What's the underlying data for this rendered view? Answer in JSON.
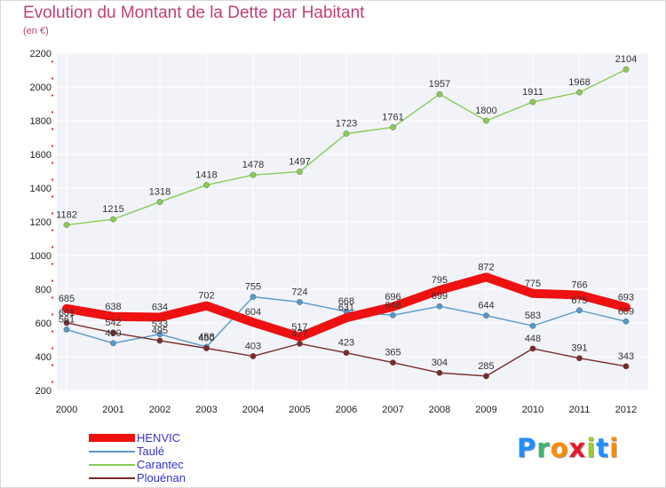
{
  "title": "Evolution du Montant de la Dette par Habitant",
  "subtitle": "(en €)",
  "logo": {
    "text": "Proxiti",
    "colors": [
      "#1e90ff",
      "#3cb371",
      "#ff8c00",
      "#e8192c",
      "#9acd32",
      "#1e90ff",
      "#ff8c00"
    ]
  },
  "chart_data": {
    "type": "line",
    "title": "Evolution du Montant de la Dette par Habitant",
    "subtitle": "(en €)",
    "x": [
      "2000",
      "2001",
      "2002",
      "2003",
      "2004",
      "2005",
      "2006",
      "2007",
      "2008",
      "2009",
      "2010",
      "2011",
      "2012"
    ],
    "yticks": [
      "200",
      "400",
      "600",
      "800",
      "1000",
      "1200",
      "1400",
      "1600",
      "1800",
      "2000",
      "2200"
    ],
    "ylim": [
      200,
      2200
    ],
    "grid": true,
    "legend_position": "bottom-left",
    "series": [
      {
        "name": "HENVIC",
        "color": "#ee1111",
        "values": [
          685,
          638,
          634,
          702,
          604,
          517,
          631,
          696,
          795,
          872,
          775,
          766,
          693
        ],
        "labels": [
          "685",
          "638",
          "634",
          "702",
          "604",
          "517",
          "631",
          "696",
          "795",
          "872",
          "775",
          "766",
          "693"
        ]
      },
      {
        "name": "Taulé",
        "color": "#5599cc",
        "values": [
          561,
          480,
          533,
          458,
          755,
          724,
          668,
          646,
          699,
          644,
          583,
          675,
          609
        ],
        "labels": [
          "561",
          "480",
          "533",
          "458",
          "755",
          "724",
          "668",
          "646",
          "699",
          "644",
          "583",
          "675",
          "609"
        ]
      },
      {
        "name": "Carantec",
        "color": "#88cc55",
        "values": [
          1182,
          1215,
          1318,
          1418,
          1478,
          1497,
          1723,
          1761,
          1957,
          1800,
          1911,
          1968,
          2104
        ],
        "labels": [
          "1182",
          "1215",
          "1318",
          "1418",
          "1478",
          "1497",
          "1723",
          "1761",
          "1957",
          "1800",
          "1911",
          "1968",
          "2104"
        ]
      },
      {
        "name": "Plouénan",
        "color": "#7a2a2a",
        "values": [
          601,
          542,
          495,
          450,
          403,
          477,
          423,
          365,
          304,
          285,
          448,
          391,
          343
        ],
        "labels": [
          "601",
          "542",
          "495",
          "450",
          "403",
          "477",
          "423",
          "365",
          "304",
          "285",
          "448",
          "391",
          "343"
        ]
      }
    ]
  }
}
